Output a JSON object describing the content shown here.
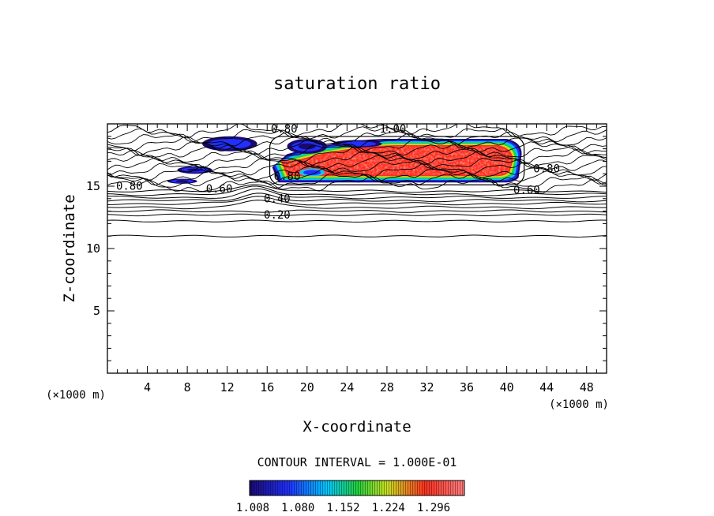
{
  "chart_data": {
    "type": "heatmap",
    "title": "saturation ratio",
    "xlabel": "X-coordinate",
    "ylabel": "Z-coordinate",
    "x_unit": "(×1000 m)",
    "y_unit": "(×1000 m)",
    "xlim": [
      0,
      50
    ],
    "ylim": [
      0,
      20
    ],
    "x_ticks": [
      4,
      8,
      12,
      16,
      20,
      24,
      28,
      32,
      36,
      40,
      44,
      48
    ],
    "y_ticks": [
      5,
      10,
      15
    ],
    "contour_interval_text": "CONTOUR INTERVAL = 1.000E-01",
    "contour_labels": [
      {
        "text": "0.80",
        "x": 17.7,
        "z": 19.3
      },
      {
        "text": "1.00",
        "x": 28.6,
        "z": 19.3
      },
      {
        "text": "0.80",
        "x": 2.2,
        "z": 14.7
      },
      {
        "text": "0.60",
        "x": 11.2,
        "z": 14.5
      },
      {
        "text": "0.40",
        "x": 17.0,
        "z": 13.7
      },
      {
        "text": "0.80",
        "x": 18.0,
        "z": 15.5
      },
      {
        "text": "0.20",
        "x": 17.0,
        "z": 12.4
      },
      {
        "text": "0.80",
        "x": 44.0,
        "z": 16.1
      },
      {
        "text": "0.60",
        "x": 42.0,
        "z": 14.4
      }
    ],
    "colorbar": {
      "ticks": [
        1.008,
        1.08,
        1.152,
        1.224,
        1.296
      ],
      "tick_labels": [
        "1.008",
        "1.080",
        "1.152",
        "1.224",
        "1.296"
      ],
      "range": [
        1.008,
        1.35
      ],
      "colors": [
        "#1a0a6e",
        "#2030ff",
        "#00c8ff",
        "#20d040",
        "#c8e020",
        "#ff3020",
        "#ff8080"
      ]
    },
    "supersaturated_regions": [
      {
        "name": "main",
        "x_range": [
          16.5,
          41.5
        ],
        "z_range": [
          15.3,
          18.8
        ],
        "value_level": 1.3
      },
      {
        "name": "left-patch-1",
        "x_range": [
          9.5,
          15.0
        ],
        "z_range": [
          17.8,
          19.0
        ],
        "value_level": 1.05
      },
      {
        "name": "left-patch-2",
        "x_range": [
          7.0,
          10.5
        ],
        "z_range": [
          16.0,
          16.6
        ],
        "value_level": 1.03
      },
      {
        "name": "left-patch-3",
        "x_range": [
          6.0,
          9.0
        ],
        "z_range": [
          15.2,
          15.6
        ],
        "value_level": 1.02
      },
      {
        "name": "upper-patch",
        "x_range": [
          18.0,
          22.0
        ],
        "z_range": [
          17.6,
          18.8
        ],
        "value_level": 1.02
      },
      {
        "name": "right-patch",
        "x_range": [
          22.5,
          27.5
        ],
        "z_range": [
          18.1,
          18.7
        ],
        "value_level": 1.08
      }
    ],
    "grid": false,
    "legend": "bottom"
  }
}
